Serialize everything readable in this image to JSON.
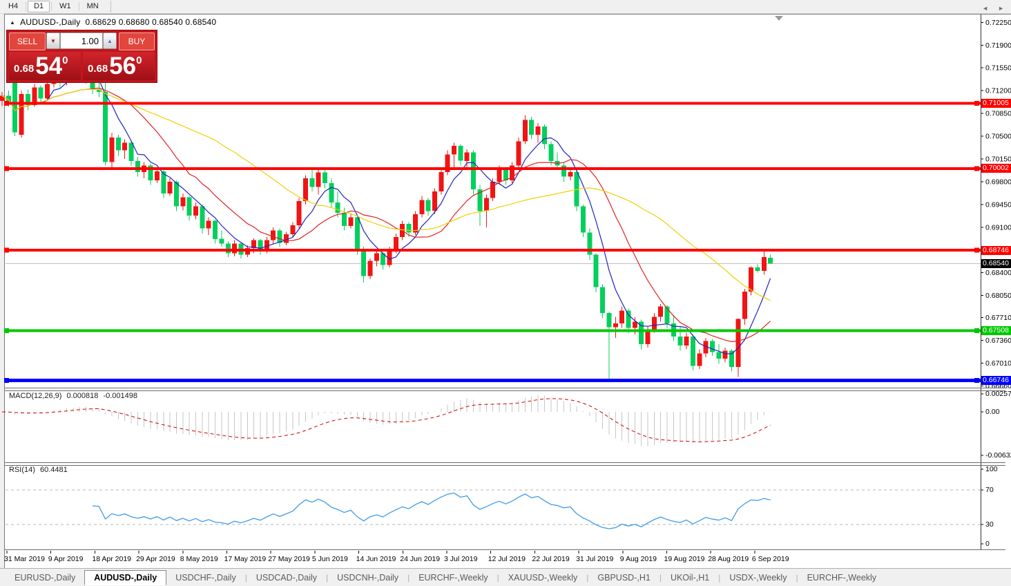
{
  "toolbar": {
    "timeframes": [
      {
        "label": "H4",
        "active": false
      },
      {
        "label": "D1",
        "active": true
      },
      {
        "label": "W1",
        "active": false
      },
      {
        "label": "MN",
        "active": false
      }
    ]
  },
  "chart": {
    "collapse_icon": "▲",
    "symbol_title": "AUDUSD-,Daily",
    "ohlc_text": "0.68629 0.68680 0.68540 0.68540",
    "trade_widget": {
      "sell_label": "SELL",
      "buy_label": "BUY",
      "volume": "1.00",
      "spinner_down_icon": "▼",
      "spinner_up_icon": "▲",
      "bid": {
        "prefix": "0.68",
        "digits": "54",
        "pip": "0"
      },
      "ask": {
        "prefix": "0.68",
        "digits": "56",
        "pip": "0"
      }
    }
  },
  "chart_data": {
    "type": "candlestick",
    "symbol": "AUDUSD",
    "timeframe": "Daily",
    "current_bar": {
      "open": "0.68629",
      "high": "0.68680",
      "low": "0.68540",
      "close": "0.68540"
    },
    "bull_color": "#f01414",
    "bear_color": "#04cf5c",
    "bid_price": 0.6854,
    "price_axis_ticks": [
      "0.72250",
      "0.71900",
      "0.71550",
      "0.71200",
      "0.70850",
      "0.70500",
      "0.70150",
      "0.69800",
      "0.69450",
      "0.69100",
      "0.68400",
      "0.68050",
      "0.67710",
      "0.67360",
      "0.67010",
      "0.66660"
    ],
    "date_labels": [
      "31 Mar 2019",
      "9 Apr 2019",
      "18 Apr 2019",
      "29 Apr 2019",
      "8 May 2019",
      "17 May 2019",
      "27 May 2019",
      "5 Jun 2019",
      "14 Jun 2019",
      "24 Jun 2019",
      "3 Jul 2019",
      "12 Jul 2019",
      "22 Jul 2019",
      "31 Jul 2019",
      "9 Aug 2019",
      "19 Aug 2019",
      "28 Aug 2019",
      "6 Sep 2019"
    ],
    "hlines": [
      {
        "name": "resistance-line-0.71005",
        "value": 0.71005,
        "label": "0.71005",
        "color": "#ff0000",
        "width": 4
      },
      {
        "name": "resistance-line-0.70002",
        "value": 0.70002,
        "label": "0.70002",
        "color": "#ff0000",
        "width": 4
      },
      {
        "name": "resistance-line-0.68746",
        "value": 0.68746,
        "label": "0.68746",
        "color": "#ff0000",
        "width": 4
      },
      {
        "name": "support-line-0.67508",
        "value": 0.67508,
        "label": "0.67508",
        "color": "#00c800",
        "width": 4
      },
      {
        "name": "support-line-0.66746",
        "value": 0.66746,
        "label": "0.66746",
        "color": "#0000ff",
        "width": 5
      },
      {
        "name": "bid-price-line",
        "value": 0.6854,
        "label": "0.68540",
        "color": "#000000",
        "width": 1,
        "style": "bid"
      }
    ],
    "moving_averages": [
      {
        "name": "fast-ma",
        "period": 6,
        "color": "#2020c0"
      },
      {
        "name": "medium-ma",
        "period": 14,
        "color": "#e02020"
      },
      {
        "name": "slow-ma",
        "period": 34,
        "color": "#efd000"
      }
    ],
    "candles": [
      [
        0.7104,
        0.7118,
        0.7096,
        0.7112
      ],
      [
        0.7112,
        0.712,
        0.7095,
        0.71
      ],
      [
        0.7138,
        0.7144,
        0.705,
        0.7056
      ],
      [
        0.7052,
        0.712,
        0.7048,
        0.7115
      ],
      [
        0.7115,
        0.7122,
        0.709,
        0.7098
      ],
      [
        0.7098,
        0.713,
        0.7095,
        0.7125
      ],
      [
        0.7125,
        0.7128,
        0.71,
        0.7108
      ],
      [
        0.7108,
        0.7135,
        0.7105,
        0.713
      ],
      [
        0.713,
        0.7152,
        0.7125,
        0.7148
      ],
      [
        0.7148,
        0.715,
        0.7125,
        0.7132
      ],
      [
        0.7132,
        0.7155,
        0.7128,
        0.715
      ],
      [
        0.715,
        0.7158,
        0.7135,
        0.714
      ],
      [
        0.714,
        0.716,
        0.7132,
        0.7155
      ],
      [
        0.7155,
        0.7158,
        0.713,
        0.7138
      ],
      [
        0.7138,
        0.7145,
        0.7115,
        0.7122
      ],
      [
        0.7122,
        0.7138,
        0.711,
        0.7118
      ],
      [
        0.7118,
        0.7135,
        0.7005,
        0.701
      ],
      [
        0.701,
        0.7055,
        0.7002,
        0.7048
      ],
      [
        0.7048,
        0.7052,
        0.702,
        0.7028
      ],
      [
        0.7028,
        0.7045,
        0.7015,
        0.704
      ],
      [
        0.704,
        0.7042,
        0.7005,
        0.7012
      ],
      [
        0.7012,
        0.7018,
        0.6988,
        0.6995
      ],
      [
        0.6995,
        0.701,
        0.6985,
        0.7005
      ],
      [
        0.7005,
        0.7008,
        0.6975,
        0.6982
      ],
      [
        0.6982,
        0.7,
        0.6978,
        0.6996
      ],
      [
        0.6996,
        0.6998,
        0.6955,
        0.6962
      ],
      [
        0.6962,
        0.6985,
        0.6958,
        0.698
      ],
      [
        0.698,
        0.6982,
        0.6935,
        0.6942
      ],
      [
        0.6942,
        0.6962,
        0.6936,
        0.6956
      ],
      [
        0.6956,
        0.6958,
        0.692,
        0.6928
      ],
      [
        0.6928,
        0.6948,
        0.6922,
        0.6942
      ],
      [
        0.6942,
        0.6945,
        0.69,
        0.6908
      ],
      [
        0.6908,
        0.6925,
        0.6898,
        0.692
      ],
      [
        0.692,
        0.6922,
        0.6885,
        0.6892
      ],
      [
        0.6892,
        0.6905,
        0.688,
        0.6885
      ],
      [
        0.6885,
        0.6888,
        0.6864,
        0.687
      ],
      [
        0.687,
        0.689,
        0.6865,
        0.6885
      ],
      [
        0.6885,
        0.6887,
        0.6862,
        0.6868
      ],
      [
        0.6868,
        0.6882,
        0.6864,
        0.6878
      ],
      [
        0.6878,
        0.6893,
        0.687,
        0.689
      ],
      [
        0.689,
        0.6892,
        0.6868,
        0.6874
      ],
      [
        0.6874,
        0.6895,
        0.687,
        0.689
      ],
      [
        0.689,
        0.691,
        0.6885,
        0.6905
      ],
      [
        0.6905,
        0.6908,
        0.688,
        0.6886
      ],
      [
        0.6886,
        0.6903,
        0.6882,
        0.6899
      ],
      [
        0.6899,
        0.6918,
        0.6894,
        0.6913
      ],
      [
        0.6913,
        0.6955,
        0.6908,
        0.695
      ],
      [
        0.695,
        0.699,
        0.6945,
        0.6985
      ],
      [
        0.6985,
        0.7,
        0.6965,
        0.6972
      ],
      [
        0.6972,
        0.6998,
        0.696,
        0.6994
      ],
      [
        0.6994,
        0.7,
        0.697,
        0.6978
      ],
      [
        0.6978,
        0.6985,
        0.694,
        0.6948
      ],
      [
        0.6948,
        0.6965,
        0.6925,
        0.6932
      ],
      [
        0.6932,
        0.694,
        0.6905,
        0.6912
      ],
      [
        0.6912,
        0.693,
        0.6908,
        0.6925
      ],
      [
        0.6925,
        0.6928,
        0.6868,
        0.6875
      ],
      [
        0.6875,
        0.688,
        0.6825,
        0.6835
      ],
      [
        0.6835,
        0.6862,
        0.683,
        0.6858
      ],
      [
        0.6858,
        0.6875,
        0.685,
        0.687
      ],
      [
        0.687,
        0.6872,
        0.6845,
        0.6852
      ],
      [
        0.6852,
        0.688,
        0.6848,
        0.6875
      ],
      [
        0.6875,
        0.69,
        0.687,
        0.6895
      ],
      [
        0.6895,
        0.692,
        0.689,
        0.6915
      ],
      [
        0.6915,
        0.6918,
        0.6895,
        0.6902
      ],
      [
        0.6902,
        0.6935,
        0.6898,
        0.693
      ],
      [
        0.693,
        0.6958,
        0.6925,
        0.6952
      ],
      [
        0.6952,
        0.6955,
        0.6928,
        0.6935
      ],
      [
        0.6935,
        0.697,
        0.693,
        0.6965
      ],
      [
        0.6965,
        0.7,
        0.696,
        0.6995
      ],
      [
        0.6995,
        0.7028,
        0.699,
        0.7022
      ],
      [
        0.7022,
        0.704,
        0.7,
        0.7035
      ],
      [
        0.7035,
        0.7038,
        0.7005,
        0.7012
      ],
      [
        0.7012,
        0.703,
        0.6998,
        0.7025
      ],
      [
        0.7025,
        0.7028,
        0.696,
        0.6968
      ],
      [
        0.6968,
        0.6975,
        0.6912,
        0.6935
      ],
      [
        0.6935,
        0.696,
        0.691,
        0.6955
      ],
      [
        0.6955,
        0.6985,
        0.695,
        0.698
      ],
      [
        0.698,
        0.7005,
        0.6975,
        0.7
      ],
      [
        0.7,
        0.7002,
        0.6975,
        0.6982
      ],
      [
        0.6982,
        0.701,
        0.6978,
        0.7005
      ],
      [
        0.7005,
        0.7048,
        0.7,
        0.7042
      ],
      [
        0.7042,
        0.7082,
        0.7038,
        0.7075
      ],
      [
        0.7075,
        0.708,
        0.7045,
        0.7052
      ],
      [
        0.7052,
        0.707,
        0.704,
        0.7065
      ],
      [
        0.7065,
        0.7068,
        0.703,
        0.7038
      ],
      [
        0.7038,
        0.7042,
        0.7005,
        0.7012
      ],
      [
        0.7012,
        0.7025,
        0.6998,
        0.7005
      ],
      [
        0.7005,
        0.701,
        0.698,
        0.6988
      ],
      [
        0.6988,
        0.7,
        0.6982,
        0.6995
      ],
      [
        0.6995,
        0.6998,
        0.6935,
        0.6942
      ],
      [
        0.6942,
        0.6945,
        0.6895,
        0.6902
      ],
      [
        0.6902,
        0.6908,
        0.686,
        0.6868
      ],
      [
        0.6868,
        0.687,
        0.681,
        0.6818
      ],
      [
        0.6818,
        0.6822,
        0.677,
        0.6778
      ],
      [
        0.6778,
        0.678,
        0.6677,
        0.6756
      ],
      [
        0.6756,
        0.6772,
        0.674,
        0.6762
      ],
      [
        0.6762,
        0.6788,
        0.6755,
        0.6782
      ],
      [
        0.6782,
        0.6785,
        0.6748,
        0.6755
      ],
      [
        0.6755,
        0.6772,
        0.6745,
        0.6765
      ],
      [
        0.6765,
        0.6768,
        0.6722,
        0.673
      ],
      [
        0.673,
        0.6758,
        0.6725,
        0.6752
      ],
      [
        0.6752,
        0.6778,
        0.6748,
        0.6772
      ],
      [
        0.6772,
        0.6792,
        0.6765,
        0.6788
      ],
      [
        0.6788,
        0.679,
        0.6755,
        0.6762
      ],
      [
        0.6762,
        0.6775,
        0.6735,
        0.6742
      ],
      [
        0.6742,
        0.6758,
        0.672,
        0.6728
      ],
      [
        0.6728,
        0.6748,
        0.6722,
        0.6742
      ],
      [
        0.6742,
        0.6745,
        0.669,
        0.6697
      ],
      [
        0.6697,
        0.6722,
        0.6692,
        0.6716
      ],
      [
        0.6716,
        0.674,
        0.671,
        0.6735
      ],
      [
        0.6735,
        0.6738,
        0.6712,
        0.6718
      ],
      [
        0.6718,
        0.673,
        0.67,
        0.6708
      ],
      [
        0.6708,
        0.6725,
        0.6702,
        0.672
      ],
      [
        0.672,
        0.6722,
        0.6688,
        0.6695
      ],
      [
        0.6695,
        0.677,
        0.668,
        0.6769
      ],
      [
        0.6769,
        0.6815,
        0.676,
        0.6811
      ],
      [
        0.6811,
        0.685,
        0.6805,
        0.6848
      ],
      [
        0.6848,
        0.6853,
        0.684,
        0.6843
      ],
      [
        0.6843,
        0.6874,
        0.6837,
        0.6864
      ],
      [
        0.68629,
        0.6868,
        0.6854,
        0.6854
      ]
    ],
    "macd": {
      "label": "MACD(12,26,9)",
      "main_value": "0.000818",
      "signal_value": "-0.001498",
      "fast": 12,
      "slow": 26,
      "signal": 9,
      "axis_ticks": [
        "0.002574",
        "0.00",
        "-0.006326"
      ],
      "histogram_color": "#c6c6c6",
      "signal_color": "#cc0000"
    },
    "rsi": {
      "label": "RSI(14)",
      "value": "60.4481",
      "period": 14,
      "axis_ticks": [
        "100",
        "70",
        "30",
        "0"
      ],
      "levels": [
        70,
        30
      ],
      "line_color": "#3e9bea"
    }
  },
  "tabs": {
    "items": [
      {
        "label": "EURUSD-,Daily",
        "active": false
      },
      {
        "label": "AUDUSD-,Daily",
        "active": true
      },
      {
        "label": "USDCHF-,Daily",
        "active": false
      },
      {
        "label": "USDCAD-,Daily",
        "active": false
      },
      {
        "label": "USDCNH-,Daily",
        "active": false
      },
      {
        "label": "EURCHF-,Weekly",
        "active": false
      },
      {
        "label": "XAUUSD-,Weekly",
        "active": false
      },
      {
        "label": "GBPUSD-,H1",
        "active": false
      },
      {
        "label": "UKOil-,H1",
        "active": false
      },
      {
        "label": "USDX-,Weekly",
        "active": false
      },
      {
        "label": "EURCHF-,Weekly",
        "active": false
      }
    ],
    "prev_icon": "◄",
    "next_icon": "►"
  }
}
